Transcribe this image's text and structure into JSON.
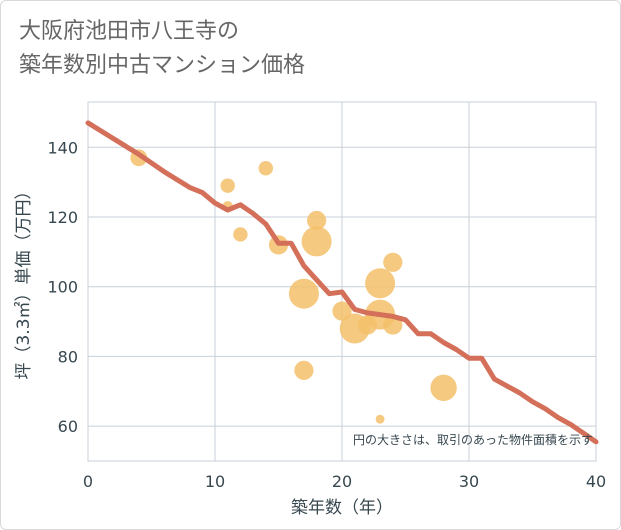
{
  "chart_data": {
    "type": "scatter",
    "title": "大阪府池田市八王寺の\n築年数別中古マンション価格",
    "xlabel": "築年数（年）",
    "ylabel": "坪（3.3㎡）単価（万円）",
    "xlim": [
      0,
      40
    ],
    "ylim": [
      50,
      153
    ],
    "xticks": [
      0,
      10,
      20,
      30,
      40
    ],
    "yticks": [
      60,
      80,
      100,
      120,
      140
    ],
    "grid": true,
    "note": "円の大きさは、取引のあった物件面積を示す",
    "bubble_color": "#f3c06a",
    "line_color": "#d4705a",
    "bubbles": [
      {
        "x": 4,
        "y": 137,
        "size": 0.45
      },
      {
        "x": 11,
        "y": 129,
        "size": 0.35
      },
      {
        "x": 11,
        "y": 123,
        "size": 0.2
      },
      {
        "x": 12,
        "y": 115,
        "size": 0.35
      },
      {
        "x": 14,
        "y": 134,
        "size": 0.35
      },
      {
        "x": 15,
        "y": 112,
        "size": 0.55
      },
      {
        "x": 17,
        "y": 98,
        "size": 1.0
      },
      {
        "x": 17,
        "y": 76,
        "size": 0.55
      },
      {
        "x": 18,
        "y": 119,
        "size": 0.55
      },
      {
        "x": 18,
        "y": 113,
        "size": 1.0
      },
      {
        "x": 20,
        "y": 93,
        "size": 0.55
      },
      {
        "x": 21,
        "y": 88,
        "size": 1.0
      },
      {
        "x": 22,
        "y": 89,
        "size": 0.55
      },
      {
        "x": 23,
        "y": 101,
        "size": 1.0
      },
      {
        "x": 23,
        "y": 92,
        "size": 1.0
      },
      {
        "x": 23,
        "y": 62,
        "size": 0.12
      },
      {
        "x": 24,
        "y": 107,
        "size": 0.55
      },
      {
        "x": 24,
        "y": 89,
        "size": 0.55
      },
      {
        "x": 28,
        "y": 71,
        "size": 0.85
      }
    ],
    "trend": [
      {
        "x": 0,
        "y": 147
      },
      {
        "x": 2,
        "y": 142.5
      },
      {
        "x": 4,
        "y": 138
      },
      {
        "x": 6,
        "y": 133
      },
      {
        "x": 8,
        "y": 128.5
      },
      {
        "x": 9,
        "y": 127
      },
      {
        "x": 10,
        "y": 124
      },
      {
        "x": 11,
        "y": 122
      },
      {
        "x": 12,
        "y": 123.5
      },
      {
        "x": 13,
        "y": 121
      },
      {
        "x": 14,
        "y": 118
      },
      {
        "x": 15,
        "y": 112.5
      },
      {
        "x": 16,
        "y": 112.5
      },
      {
        "x": 17,
        "y": 106
      },
      {
        "x": 18,
        "y": 102
      },
      {
        "x": 19,
        "y": 98
      },
      {
        "x": 20,
        "y": 98.5
      },
      {
        "x": 21,
        "y": 93.5
      },
      {
        "x": 22,
        "y": 92.5
      },
      {
        "x": 23,
        "y": 92
      },
      {
        "x": 24,
        "y": 91.5
      },
      {
        "x": 25,
        "y": 90.5
      },
      {
        "x": 26,
        "y": 86.5
      },
      {
        "x": 27,
        "y": 86.5
      },
      {
        "x": 28,
        "y": 84
      },
      {
        "x": 29,
        "y": 82
      },
      {
        "x": 30,
        "y": 79.5
      },
      {
        "x": 31,
        "y": 79.5
      },
      {
        "x": 32,
        "y": 73.5
      },
      {
        "x": 33,
        "y": 71.5
      },
      {
        "x": 34,
        "y": 69.5
      },
      {
        "x": 35,
        "y": 67
      },
      {
        "x": 36,
        "y": 65
      },
      {
        "x": 37,
        "y": 62.5
      },
      {
        "x": 38,
        "y": 60.5
      },
      {
        "x": 39,
        "y": 58
      },
      {
        "x": 40,
        "y": 55.5
      }
    ]
  }
}
